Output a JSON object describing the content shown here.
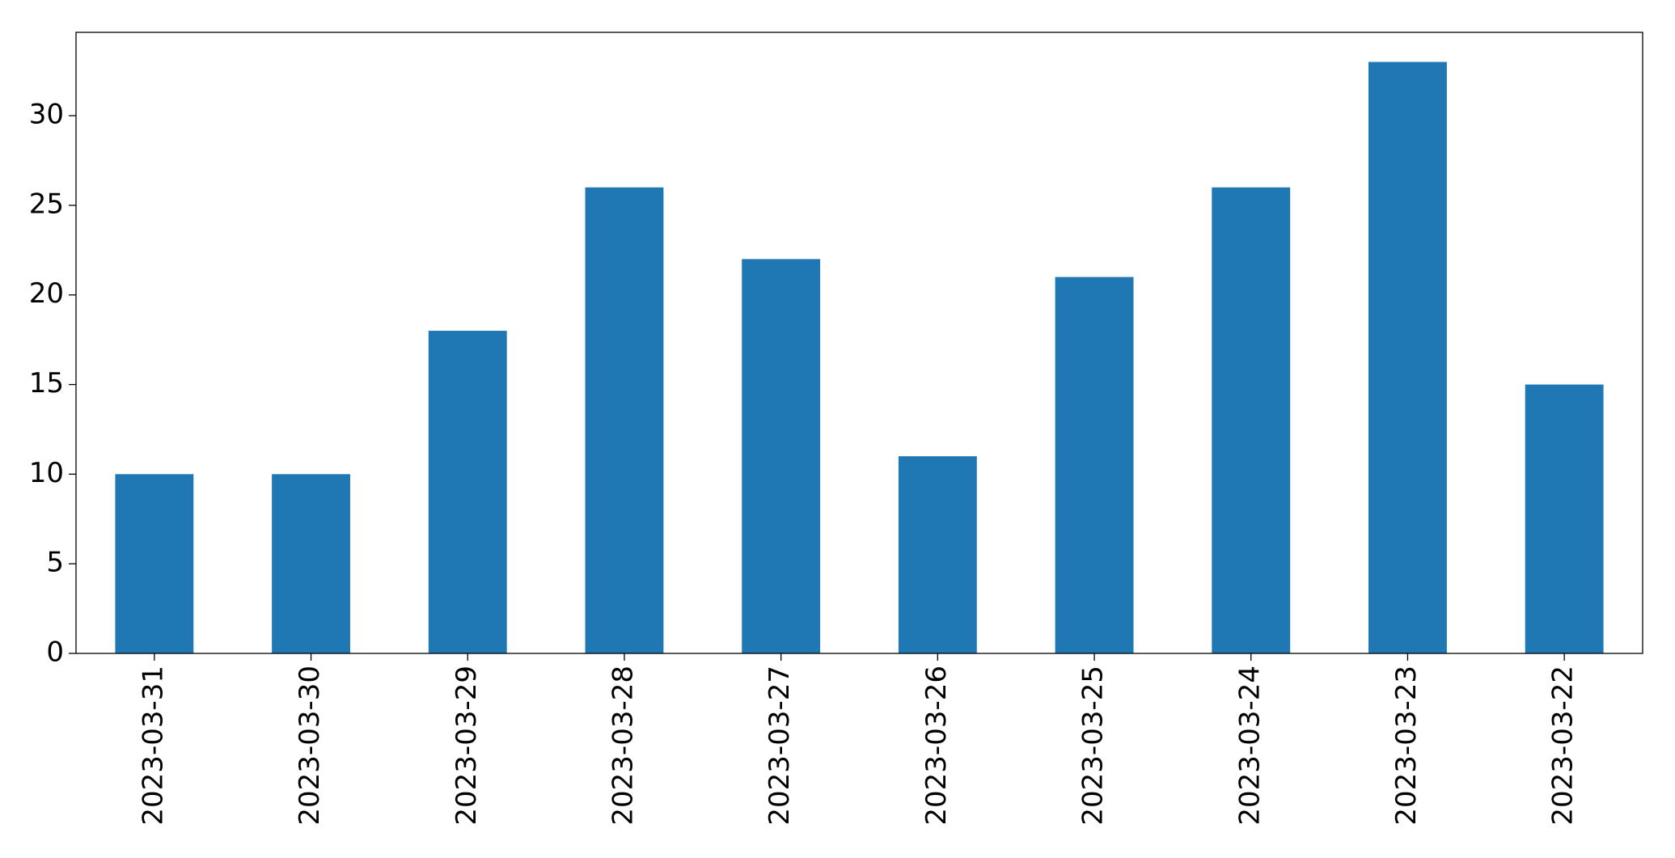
{
  "chart_data": {
    "type": "bar",
    "categories": [
      "2023-03-31",
      "2023-03-30",
      "2023-03-29",
      "2023-03-28",
      "2023-03-27",
      "2023-03-26",
      "2023-03-25",
      "2023-03-24",
      "2023-03-23",
      "2023-03-22"
    ],
    "values": [
      10,
      10,
      18,
      26,
      22,
      11,
      21,
      26,
      33,
      15
    ],
    "color": "#1f77b4",
    "ylim": [
      0,
      34.65
    ],
    "yticks": [
      0,
      5,
      10,
      15,
      20,
      25,
      30
    ],
    "grid": false
  }
}
